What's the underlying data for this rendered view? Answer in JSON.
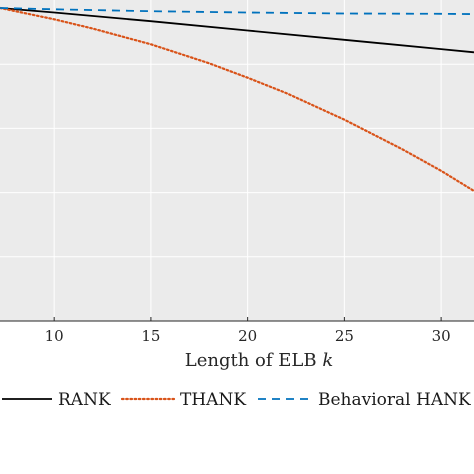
{
  "chart_data": {
    "type": "line",
    "xlabel": "Length of ELB",
    "xlabel_var": "k",
    "xlim": [
      7.2,
      31.7
    ],
    "xticks": [
      10,
      15,
      20,
      25,
      30
    ],
    "ylim": [
      0,
      1
    ],
    "grid": true,
    "legend_position": "bottom",
    "series": [
      {
        "name": "RANK",
        "color": "#000000",
        "style": "solid",
        "x": [
          7.2,
          10,
          15,
          20,
          25,
          30,
          31.7
        ],
        "y": [
          0.975,
          0.961,
          0.934,
          0.905,
          0.876,
          0.847,
          0.837
        ]
      },
      {
        "name": "THANK",
        "color": "#d95319",
        "style": "dotted",
        "x": [
          7.2,
          8,
          10,
          12,
          15,
          18,
          20,
          22,
          25,
          28,
          30,
          31.7
        ],
        "y": [
          0.975,
          0.965,
          0.94,
          0.911,
          0.862,
          0.803,
          0.758,
          0.71,
          0.627,
          0.535,
          0.468,
          0.405
        ]
      },
      {
        "name": "Behavioral HANK",
        "color": "#0072bd",
        "style": "dashed",
        "x": [
          7.2,
          10,
          15,
          20,
          25,
          30,
          31.7
        ],
        "y": [
          0.975,
          0.971,
          0.965,
          0.961,
          0.958,
          0.957,
          0.956
        ]
      }
    ]
  }
}
